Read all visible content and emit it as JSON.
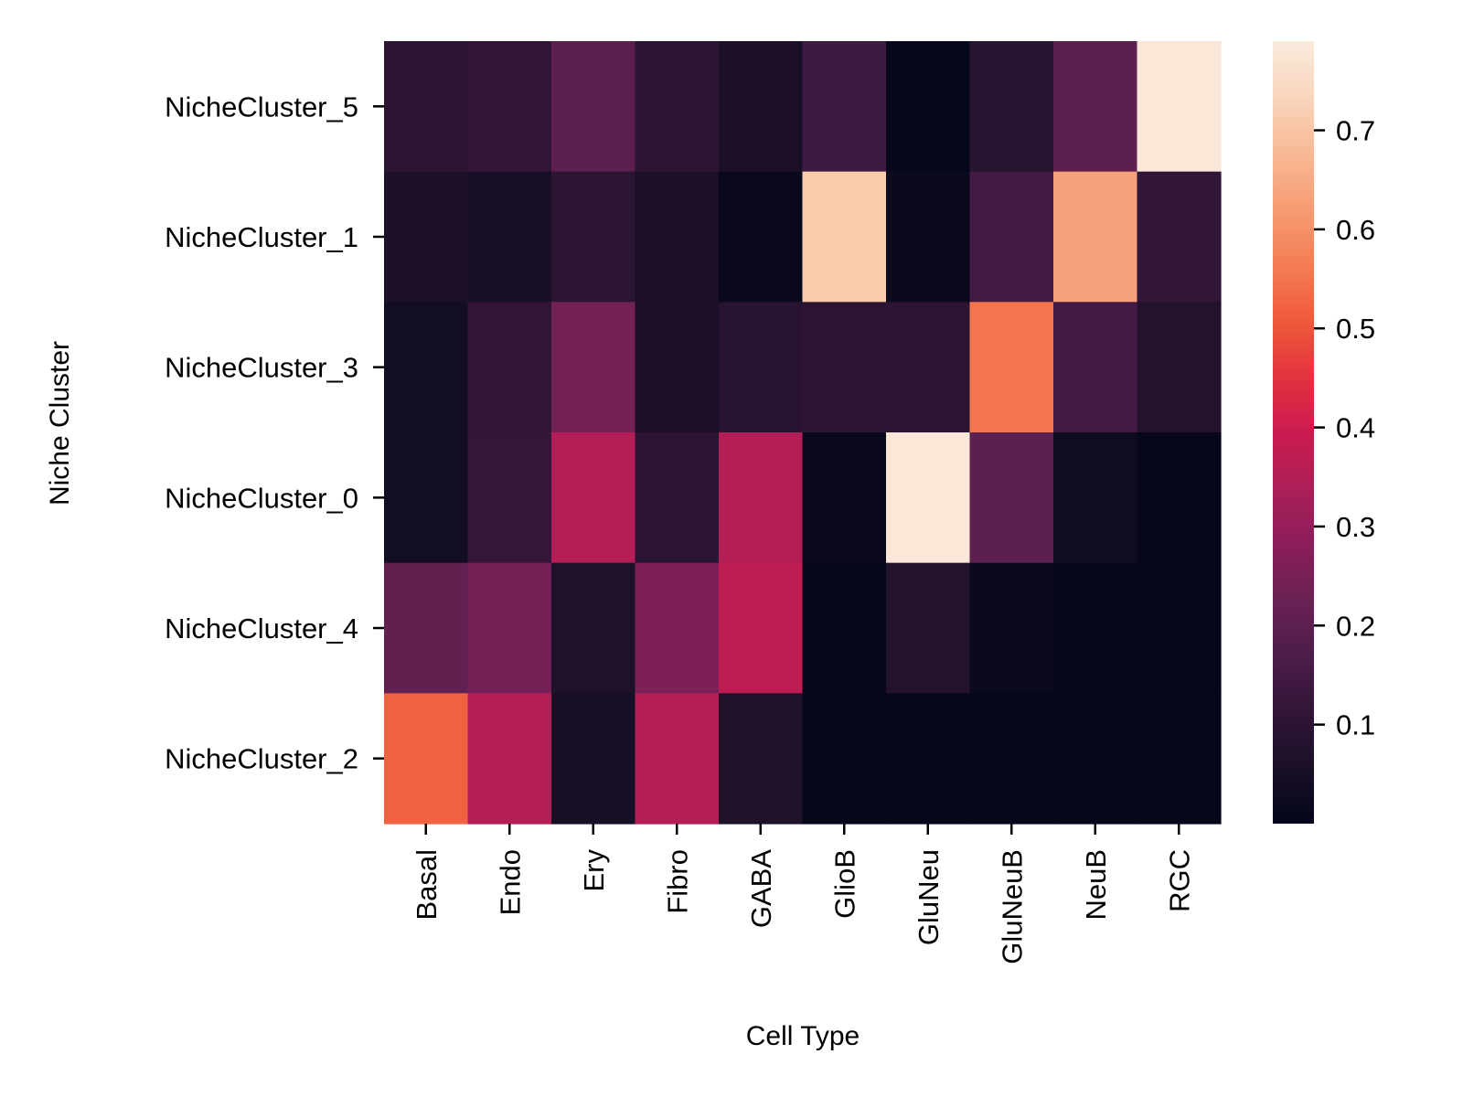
{
  "chart_data": {
    "type": "heatmap",
    "title": "",
    "xlabel": "Cell Type",
    "ylabel": "Niche Cluster",
    "x_categories": [
      "Basal",
      "Endo",
      "Ery",
      "Fibro",
      "GABA",
      "GlioB",
      "GluNeu",
      "GluNeuB",
      "NeuB",
      "RGC"
    ],
    "y_categories": [
      "NicheCluster_5",
      "NicheCluster_1",
      "NicheCluster_3",
      "NicheCluster_0",
      "NicheCluster_4",
      "NicheCluster_2"
    ],
    "values": [
      [
        0.1,
        0.11,
        0.2,
        0.1,
        0.06,
        0.14,
        0.01,
        0.09,
        0.2,
        0.78
      ],
      [
        0.06,
        0.05,
        0.1,
        0.06,
        0.02,
        0.71,
        0.02,
        0.15,
        0.63,
        0.11
      ],
      [
        0.04,
        0.11,
        0.24,
        0.06,
        0.09,
        0.1,
        0.1,
        0.55,
        0.15,
        0.08
      ],
      [
        0.04,
        0.12,
        0.35,
        0.1,
        0.35,
        0.02,
        0.78,
        0.2,
        0.03,
        0.01
      ],
      [
        0.21,
        0.24,
        0.07,
        0.26,
        0.37,
        0.01,
        0.08,
        0.02,
        0.01,
        0.01
      ],
      [
        0.52,
        0.35,
        0.05,
        0.35,
        0.07,
        0.01,
        0.01,
        0.01,
        0.01,
        0.01
      ]
    ],
    "colormap": "rocket",
    "colorbar": {
      "vmin": 0.0,
      "vmax": 0.79,
      "ticks": [
        0.1,
        0.2,
        0.3,
        0.4,
        0.5,
        0.6,
        0.7
      ],
      "tick_labels": [
        "0.1",
        "0.2",
        "0.3",
        "0.4",
        "0.5",
        "0.6",
        "0.7"
      ],
      "placement": "right"
    },
    "grid": false
  },
  "colormap_stops": [
    "#03051a",
    "#1a1026",
    "#311537",
    "#4c1d4b",
    "#6b2154",
    "#8b1d5b",
    "#ac1f57",
    "#cb1b4f",
    "#e2333f",
    "#ef5a3a",
    "#f47e54",
    "#f69c73",
    "#f8b995",
    "#f9d6bd",
    "#faebdd"
  ]
}
